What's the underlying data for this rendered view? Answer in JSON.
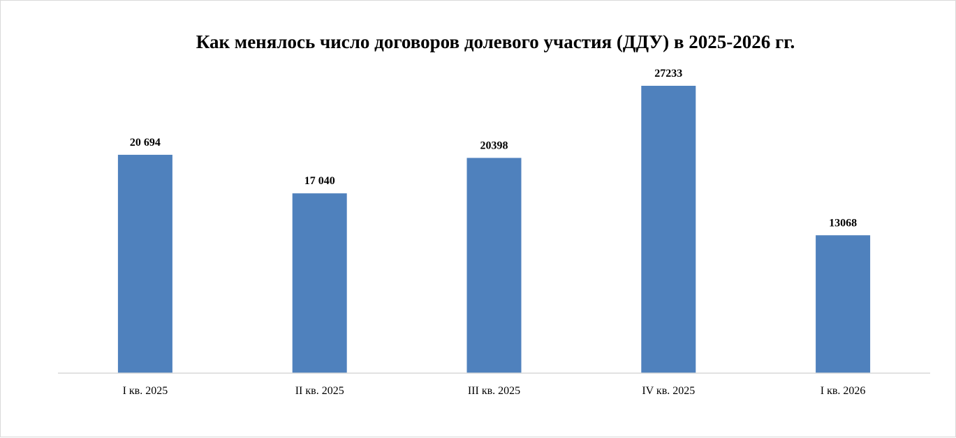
{
  "chart_data": {
    "type": "bar",
    "title": "Как менялось число договоров долевого участия (ДДУ) в 2025-2026 гг.",
    "xlabel": "",
    "ylabel": "",
    "categories": [
      "I кв. 2025",
      "II кв. 2025",
      "III кв. 2025",
      "IV кв. 2025",
      "I кв. 2026"
    ],
    "values": [
      20694,
      17040,
      20398,
      27233,
      13068
    ],
    "data_labels": [
      "20 694",
      "17 040",
      "20398",
      "27233",
      "13068"
    ],
    "ylim": [
      0,
      27233
    ],
    "grid": false,
    "legend": "none",
    "bar_color": "#4f81bd",
    "axis_color": "#d9d9d9"
  }
}
